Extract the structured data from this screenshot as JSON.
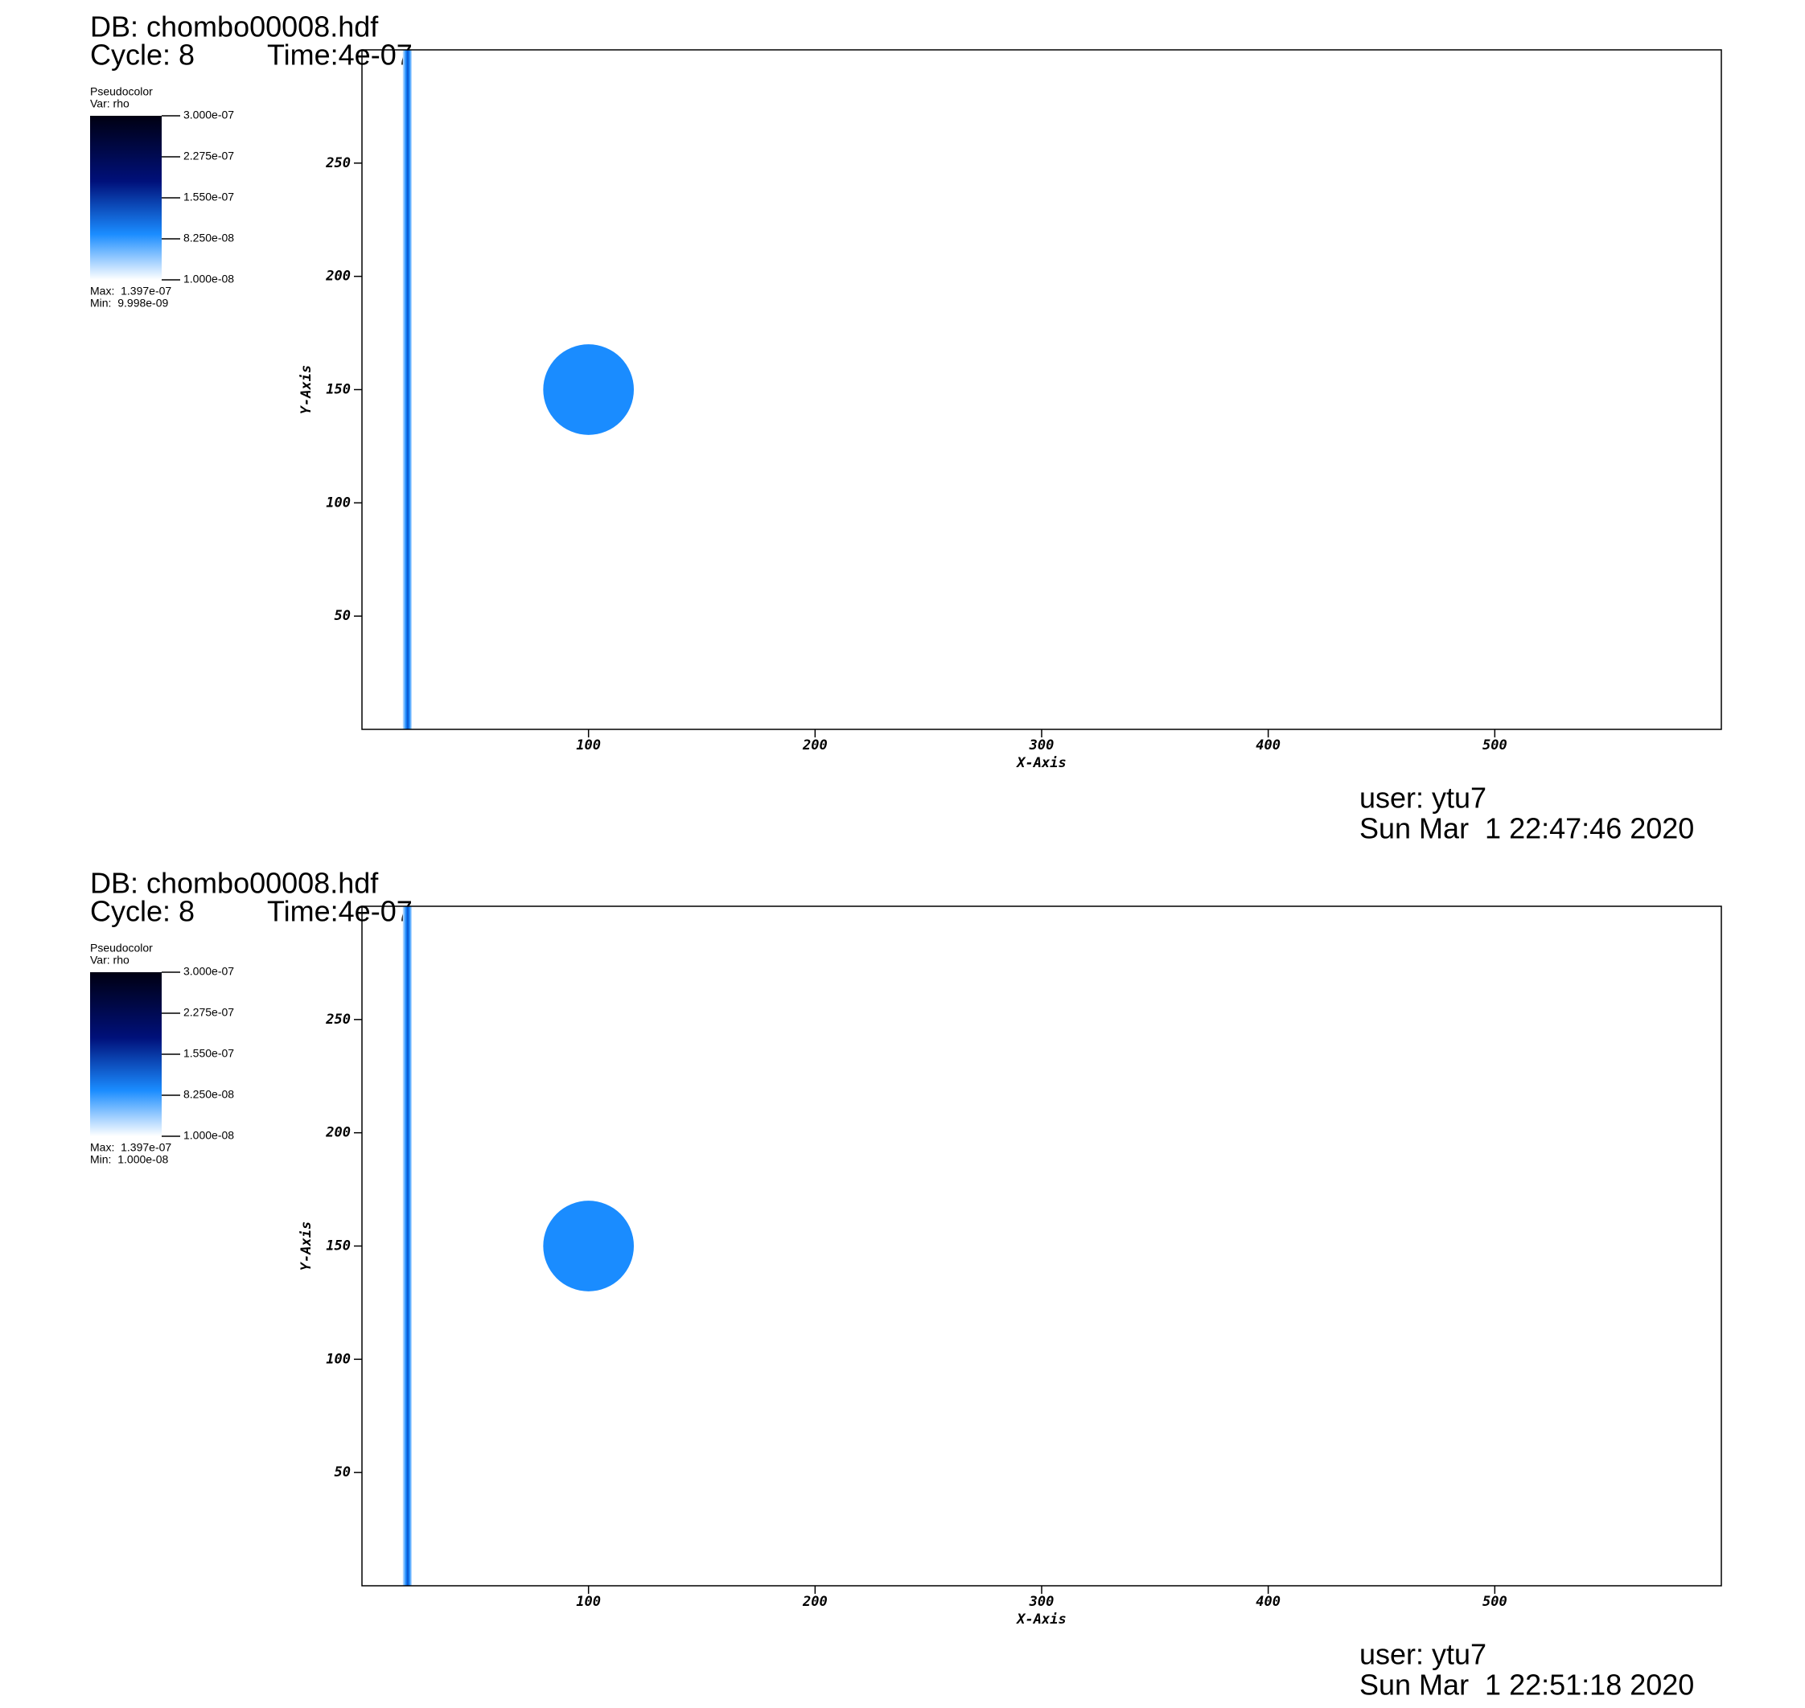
{
  "chart_data": [
    {
      "type": "pseudocolor",
      "db": "DB: chombo00008.hdf",
      "cycle": "Cycle: 8",
      "time": "Time:4e-07",
      "legend_title": "Pseudocolor",
      "legend_var": "Var: rho",
      "colorbar_lim": [
        1e-08,
        3e-07
      ],
      "colorbar_ticks": [
        {
          "value": 3e-07,
          "label": "3.000e-07"
        },
        {
          "value": 2.275e-07,
          "label": "2.275e-07"
        },
        {
          "value": 1.55e-07,
          "label": "1.550e-07"
        },
        {
          "value": 8.25e-08,
          "label": "8.250e-08"
        },
        {
          "value": 1e-08,
          "label": "1.000e-08"
        }
      ],
      "max": "Max:  1.397e-07",
      "min": "Min:  9.998e-09",
      "xlabel": "X-Axis",
      "ylabel": "Y-Axis",
      "xlim": [
        0,
        600
      ],
      "ylim": [
        0,
        300
      ],
      "xticks": [
        100,
        200,
        300,
        400,
        500
      ],
      "yticks": [
        50,
        100,
        150,
        200,
        250
      ],
      "circle": {
        "x": 100,
        "y": 150,
        "r": 20,
        "color": "#1a8cff"
      },
      "band": {
        "x": [
          18,
          22
        ],
        "color": "#1a8cff"
      },
      "user": "user: ytu7",
      "date": "Sun Mar  1 22:47:46 2020"
    },
    {
      "type": "pseudocolor",
      "db": "DB: chombo00008.hdf",
      "cycle": "Cycle: 8",
      "time": "Time:4e-07",
      "legend_title": "Pseudocolor",
      "legend_var": "Var: rho",
      "colorbar_lim": [
        1e-08,
        3e-07
      ],
      "colorbar_ticks": [
        {
          "value": 3e-07,
          "label": "3.000e-07"
        },
        {
          "value": 2.275e-07,
          "label": "2.275e-07"
        },
        {
          "value": 1.55e-07,
          "label": "1.550e-07"
        },
        {
          "value": 8.25e-08,
          "label": "8.250e-08"
        },
        {
          "value": 1e-08,
          "label": "1.000e-08"
        }
      ],
      "max": "Max:  1.397e-07",
      "min": "Min:  1.000e-08",
      "xlabel": "X-Axis",
      "ylabel": "Y-Axis",
      "xlim": [
        0,
        600
      ],
      "ylim": [
        0,
        300
      ],
      "xticks": [
        100,
        200,
        300,
        400,
        500
      ],
      "yticks": [
        50,
        100,
        150,
        200,
        250
      ],
      "circle": {
        "x": 100,
        "y": 150,
        "r": 20,
        "color": "#1a8cff"
      },
      "band": {
        "x": [
          18,
          22
        ],
        "color": "#1a8cff"
      },
      "user": "user: ytu7",
      "date": "Sun Mar  1 22:51:18 2020"
    }
  ]
}
